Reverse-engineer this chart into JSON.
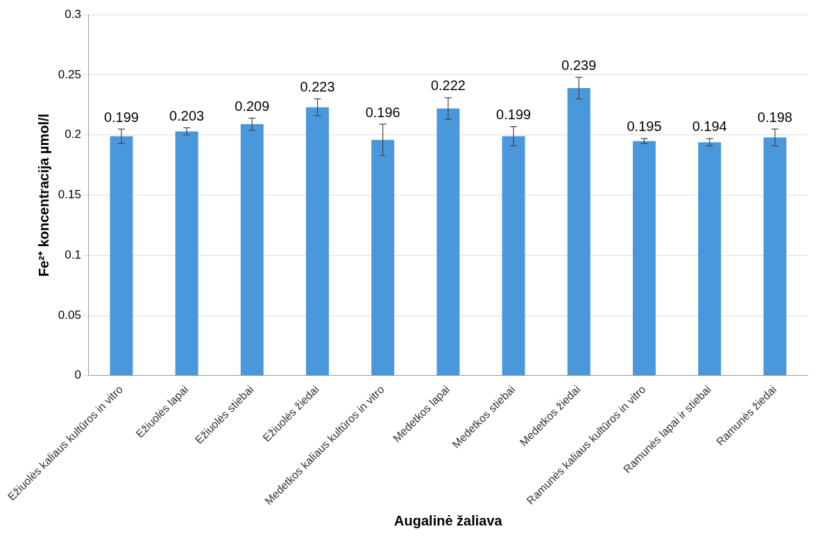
{
  "chart_data": {
    "type": "bar",
    "xlabel": "Augalinė žaliava",
    "ylabel": "Fe²⁺ koncentracija µmol/l",
    "categories": [
      "Ežiuolės kaliaus kultūros in vitro",
      "Ežiuolės lapai",
      "Ežiuolės stiebai",
      "Ežiuolės žiedai",
      "Medetkos kaliaus kultūros in vitro",
      "Medetkos lapai",
      "Medetkos stiebai",
      "Medetkos žiedai",
      "Ramunės kaliaus kultūros in vitro",
      "Ramunės lapai ir stiebai",
      "Ramunės žiedai"
    ],
    "values": [
      0.199,
      0.203,
      0.209,
      0.223,
      0.196,
      0.222,
      0.199,
      0.239,
      0.195,
      0.194,
      0.198
    ],
    "errors": [
      0.006,
      0.003,
      0.005,
      0.007,
      0.013,
      0.009,
      0.008,
      0.009,
      0.002,
      0.003,
      0.007
    ],
    "color": "#4a98dc",
    "ylim": [
      0,
      0.3
    ],
    "yticks": [
      0,
      0.05,
      0.1,
      0.15,
      0.2,
      0.25,
      0.3
    ],
    "grid": "y",
    "data_labels": true,
    "legend": false
  }
}
